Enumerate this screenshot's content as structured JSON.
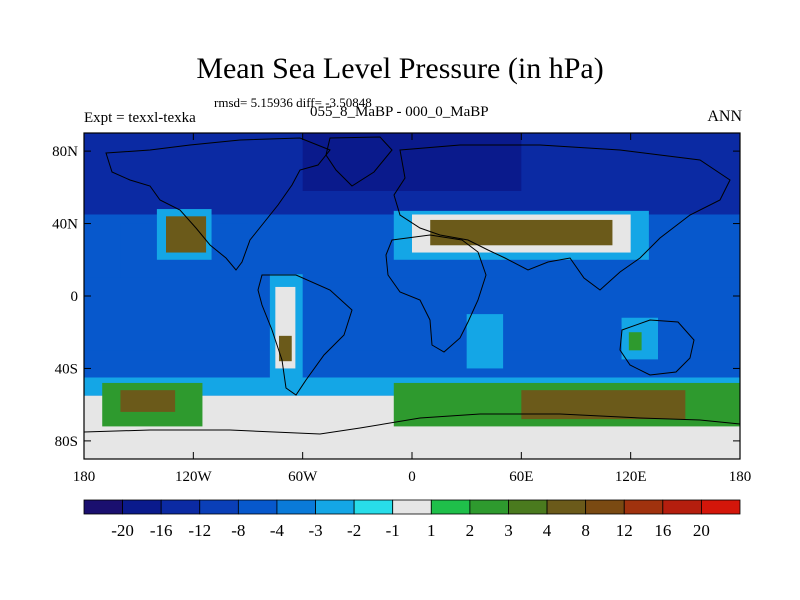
{
  "title": "Mean Sea Level Pressure (in hPa)",
  "stats_line": "rmsd= 5.15936 diff= -3.50848",
  "experiment_label": "Expt = texxl-texka",
  "difference_label": "055_8_MaBP - 000_0_MaBP",
  "season_label": "ANN",
  "colors": {
    "bin_colors": [
      "#1a0f6f",
      "#0a1a8c",
      "#0b2aa3",
      "#0a3fb8",
      "#0758cc",
      "#0a7ad9",
      "#14a6e6",
      "#28dde9",
      "#e6e6e6",
      "#1fbf4a",
      "#2e9a2e",
      "#4a7a1e",
      "#6b5a1a",
      "#7a4a12",
      "#a0320e",
      "#b51e0e",
      "#d4160a"
    ]
  },
  "chart_data": {
    "type": "filled-contour-map",
    "projection": "cylindrical-equidistant",
    "lon_range": [
      -180,
      180
    ],
    "lat_range": [
      -90,
      90
    ],
    "x_ticks": [
      {
        "value": -180,
        "label": "180"
      },
      {
        "value": -120,
        "label": "120W"
      },
      {
        "value": -60,
        "label": "60W"
      },
      {
        "value": 0,
        "label": "0"
      },
      {
        "value": 60,
        "label": "60E"
      },
      {
        "value": 120,
        "label": "120E"
      },
      {
        "value": 180,
        "label": "180"
      }
    ],
    "y_ticks": [
      {
        "value": 80,
        "label": "80N"
      },
      {
        "value": 40,
        "label": "40N"
      },
      {
        "value": 0,
        "label": "0"
      },
      {
        "value": -40,
        "label": "40S"
      },
      {
        "value": -80,
        "label": "80S"
      }
    ],
    "colorbar": {
      "levels": [
        "-20",
        "-16",
        "-12",
        "-8",
        "-4",
        "-3",
        "-2",
        "-1",
        "1",
        "2",
        "3",
        "4",
        "8",
        "12",
        "16",
        "20"
      ]
    },
    "field_regions": [
      {
        "lon": [
          -180,
          180
        ],
        "lat": [
          -90,
          90
        ],
        "value": -6
      },
      {
        "lon": [
          -180,
          180
        ],
        "lat": [
          45,
          90
        ],
        "value": -14
      },
      {
        "lon": [
          -60,
          60
        ],
        "lat": [
          58,
          90
        ],
        "value": -18
      },
      {
        "lon": [
          -180,
          180
        ],
        "lat": [
          -30,
          10
        ],
        "value": -8
      },
      {
        "lon": [
          -160,
          -90
        ],
        "lat": [
          10,
          40
        ],
        "value": -8
      },
      {
        "lon": [
          -180,
          180
        ],
        "lat": [
          -90,
          -55
        ],
        "value": 0.5
      },
      {
        "lon": [
          -180,
          180
        ],
        "lat": [
          -55,
          -45
        ],
        "value": -2.5
      },
      {
        "lon": [
          -140,
          -110
        ],
        "lat": [
          20,
          48
        ],
        "value": -2.5
      },
      {
        "lon": [
          -135,
          -113
        ],
        "lat": [
          24,
          44
        ],
        "value": 5
      },
      {
        "lon": [
          -78,
          -60
        ],
        "lat": [
          -52,
          12
        ],
        "value": -2.5
      },
      {
        "lon": [
          -75,
          -64
        ],
        "lat": [
          -40,
          5
        ],
        "value": 0.5
      },
      {
        "lon": [
          -73,
          -66
        ],
        "lat": [
          -36,
          -22
        ],
        "value": 5
      },
      {
        "lon": [
          -10,
          130
        ],
        "lat": [
          20,
          47
        ],
        "value": -2.5
      },
      {
        "lon": [
          0,
          120
        ],
        "lat": [
          24,
          45
        ],
        "value": 0.5
      },
      {
        "lon": [
          10,
          110
        ],
        "lat": [
          28,
          42
        ],
        "value": 5
      },
      {
        "lon": [
          30,
          50
        ],
        "lat": [
          -40,
          -10
        ],
        "value": -2.5
      },
      {
        "lon": [
          115,
          135
        ],
        "lat": [
          -35,
          -12
        ],
        "value": -2.5
      },
      {
        "lon": [
          119,
          126
        ],
        "lat": [
          -30,
          -20
        ],
        "value": 2.5
      },
      {
        "lon": [
          -170,
          -115
        ],
        "lat": [
          -72,
          -48
        ],
        "value": 2.5
      },
      {
        "lon": [
          -160,
          -130
        ],
        "lat": [
          -64,
          -52
        ],
        "value": 5
      },
      {
        "lon": [
          -10,
          180
        ],
        "lat": [
          -72,
          -48
        ],
        "value": 2.5
      },
      {
        "lon": [
          60,
          150
        ],
        "lat": [
          -68,
          -52
        ],
        "value": 5
      }
    ]
  }
}
